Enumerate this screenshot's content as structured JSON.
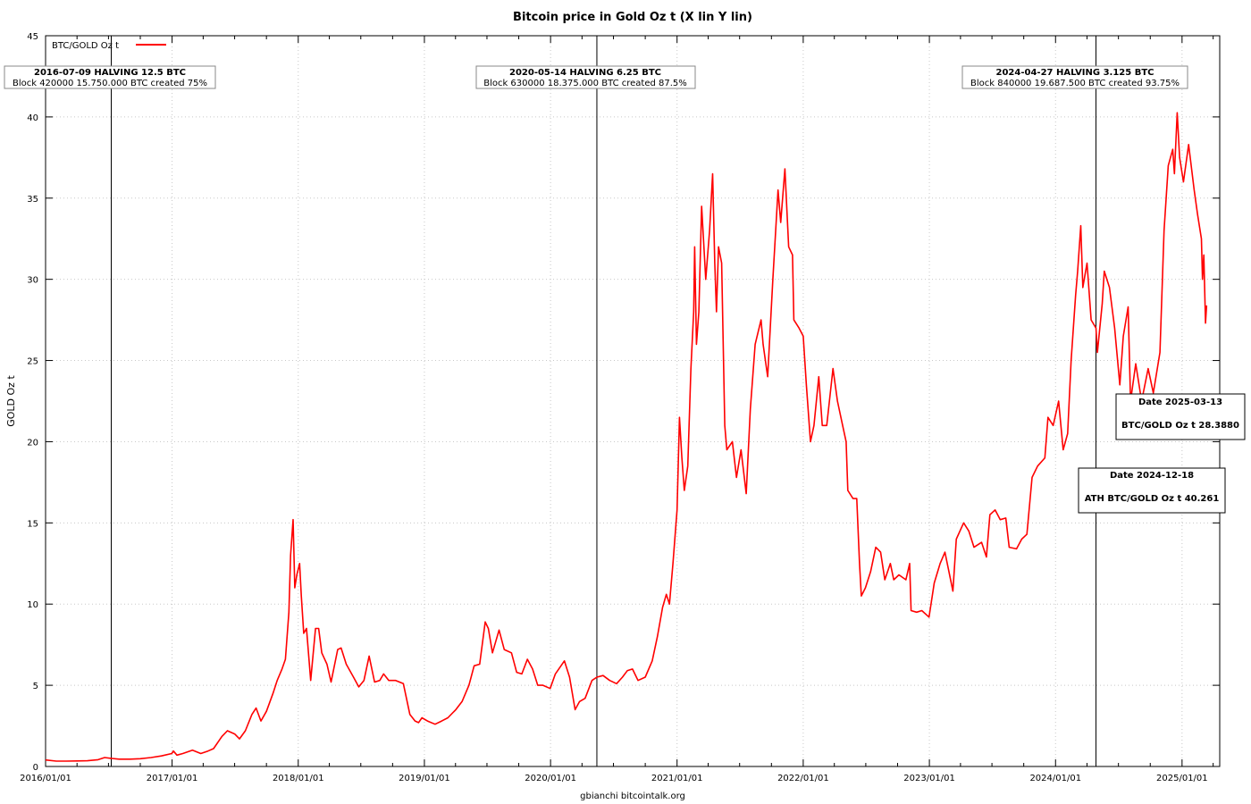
{
  "chart_data": {
    "type": "line",
    "title": "Bitcoin price in Gold Oz t (X lin Y lin)",
    "xlabel": "gbianchi bitcointalk.org",
    "ylabel": "GOLD Oz t",
    "xlim": [
      "2016-01-01",
      "2025-04-20"
    ],
    "ylim": [
      0,
      45
    ],
    "x_ticks": [
      "2016/01/01",
      "2017/01/01",
      "2018/01/01",
      "2019/01/01",
      "2020/01/01",
      "2021/01/01",
      "2022/01/01",
      "2023/01/01",
      "2024/01/01",
      "2025/01/01"
    ],
    "y_ticks": [
      0,
      5,
      10,
      15,
      20,
      25,
      30,
      35,
      40,
      45
    ],
    "grid": true,
    "legend": {
      "position": "top-left",
      "label": "BTC/GOLD Oz t",
      "color": "#ff0000"
    },
    "series": [
      {
        "name": "BTC/GOLD Oz t",
        "color": "#ff0000",
        "points": [
          [
            "2016-01-01",
            0.4
          ],
          [
            "2016-02-01",
            0.33
          ],
          [
            "2016-03-01",
            0.33
          ],
          [
            "2016-04-01",
            0.34
          ],
          [
            "2016-05-01",
            0.35
          ],
          [
            "2016-06-01",
            0.42
          ],
          [
            "2016-06-20",
            0.55
          ],
          [
            "2016-07-09",
            0.5
          ],
          [
            "2016-08-01",
            0.45
          ],
          [
            "2016-09-01",
            0.45
          ],
          [
            "2016-10-01",
            0.48
          ],
          [
            "2016-11-01",
            0.55
          ],
          [
            "2016-12-01",
            0.65
          ],
          [
            "2016-12-31",
            0.8
          ],
          [
            "2017-01-05",
            0.95
          ],
          [
            "2017-01-15",
            0.7
          ],
          [
            "2017-02-01",
            0.8
          ],
          [
            "2017-03-01",
            1.0
          ],
          [
            "2017-03-25",
            0.8
          ],
          [
            "2017-04-15",
            0.95
          ],
          [
            "2017-05-01",
            1.1
          ],
          [
            "2017-05-25",
            1.85
          ],
          [
            "2017-06-10",
            2.2
          ],
          [
            "2017-07-01",
            2.0
          ],
          [
            "2017-07-15",
            1.7
          ],
          [
            "2017-08-01",
            2.2
          ],
          [
            "2017-08-20",
            3.2
          ],
          [
            "2017-09-01",
            3.6
          ],
          [
            "2017-09-15",
            2.8
          ],
          [
            "2017-10-01",
            3.4
          ],
          [
            "2017-10-20",
            4.5
          ],
          [
            "2017-11-01",
            5.3
          ],
          [
            "2017-11-15",
            6.0
          ],
          [
            "2017-11-25",
            6.6
          ],
          [
            "2017-12-05",
            9.5
          ],
          [
            "2017-12-10",
            13.0
          ],
          [
            "2017-12-17",
            15.2
          ],
          [
            "2017-12-22",
            11.0
          ],
          [
            "2017-12-28",
            11.8
          ],
          [
            "2018-01-05",
            12.5
          ],
          [
            "2018-01-10",
            10.5
          ],
          [
            "2018-01-17",
            8.2
          ],
          [
            "2018-01-25",
            8.5
          ],
          [
            "2018-02-06",
            5.3
          ],
          [
            "2018-02-20",
            8.5
          ],
          [
            "2018-03-01",
            8.5
          ],
          [
            "2018-03-10",
            7.0
          ],
          [
            "2018-03-25",
            6.3
          ],
          [
            "2018-04-06",
            5.2
          ],
          [
            "2018-04-25",
            7.2
          ],
          [
            "2018-05-05",
            7.3
          ],
          [
            "2018-05-20",
            6.3
          ],
          [
            "2018-06-10",
            5.5
          ],
          [
            "2018-06-25",
            4.9
          ],
          [
            "2018-07-10",
            5.3
          ],
          [
            "2018-07-25",
            6.8
          ],
          [
            "2018-08-10",
            5.2
          ],
          [
            "2018-08-25",
            5.3
          ],
          [
            "2018-09-05",
            5.7
          ],
          [
            "2018-09-20",
            5.3
          ],
          [
            "2018-10-10",
            5.3
          ],
          [
            "2018-11-01",
            5.1
          ],
          [
            "2018-11-20",
            3.2
          ],
          [
            "2018-12-05",
            2.8
          ],
          [
            "2018-12-15",
            2.7
          ],
          [
            "2018-12-25",
            3.0
          ],
          [
            "2019-01-10",
            2.8
          ],
          [
            "2019-02-01",
            2.6
          ],
          [
            "2019-02-20",
            2.8
          ],
          [
            "2019-03-10",
            3.0
          ],
          [
            "2019-04-02",
            3.5
          ],
          [
            "2019-04-20",
            4.0
          ],
          [
            "2019-05-10",
            5.0
          ],
          [
            "2019-05-25",
            6.2
          ],
          [
            "2019-06-10",
            6.3
          ],
          [
            "2019-06-26",
            8.9
          ],
          [
            "2019-07-05",
            8.5
          ],
          [
            "2019-07-17",
            7.0
          ],
          [
            "2019-08-05",
            8.4
          ],
          [
            "2019-08-20",
            7.2
          ],
          [
            "2019-09-10",
            7.0
          ],
          [
            "2019-09-25",
            5.8
          ],
          [
            "2019-10-10",
            5.7
          ],
          [
            "2019-10-26",
            6.6
          ],
          [
            "2019-11-10",
            6.0
          ],
          [
            "2019-11-25",
            5.0
          ],
          [
            "2019-12-10",
            5.0
          ],
          [
            "2019-12-31",
            4.8
          ],
          [
            "2020-01-15",
            5.7
          ],
          [
            "2020-02-10",
            6.5
          ],
          [
            "2020-02-25",
            5.5
          ],
          [
            "2020-03-12",
            3.5
          ],
          [
            "2020-03-25",
            4.0
          ],
          [
            "2020-04-10",
            4.2
          ],
          [
            "2020-04-30",
            5.3
          ],
          [
            "2020-05-14",
            5.5
          ],
          [
            "2020-06-01",
            5.6
          ],
          [
            "2020-06-20",
            5.3
          ],
          [
            "2020-07-10",
            5.1
          ],
          [
            "2020-07-27",
            5.5
          ],
          [
            "2020-08-10",
            5.9
          ],
          [
            "2020-08-25",
            6.0
          ],
          [
            "2020-09-10",
            5.3
          ],
          [
            "2020-10-01",
            5.5
          ],
          [
            "2020-10-21",
            6.5
          ],
          [
            "2020-11-05",
            8.0
          ],
          [
            "2020-11-20",
            9.8
          ],
          [
            "2020-12-01",
            10.6
          ],
          [
            "2020-12-10",
            10.0
          ],
          [
            "2020-12-20",
            12.5
          ],
          [
            "2021-01-01",
            15.8
          ],
          [
            "2021-01-08",
            21.5
          ],
          [
            "2021-01-15",
            19.0
          ],
          [
            "2021-01-22",
            17.0
          ],
          [
            "2021-02-01",
            18.5
          ],
          [
            "2021-02-10",
            24.5
          ],
          [
            "2021-02-18",
            28.0
          ],
          [
            "2021-02-21",
            32.0
          ],
          [
            "2021-02-26",
            26.0
          ],
          [
            "2021-03-05",
            28.0
          ],
          [
            "2021-03-13",
            34.5
          ],
          [
            "2021-03-25",
            30.0
          ],
          [
            "2021-04-05",
            33.0
          ],
          [
            "2021-04-14",
            36.5
          ],
          [
            "2021-04-20",
            31.0
          ],
          [
            "2021-04-25",
            28.0
          ],
          [
            "2021-05-01",
            32.0
          ],
          [
            "2021-05-10",
            31.0
          ],
          [
            "2021-05-19",
            21.0
          ],
          [
            "2021-05-25",
            19.5
          ],
          [
            "2021-06-10",
            20.0
          ],
          [
            "2021-06-22",
            17.8
          ],
          [
            "2021-07-05",
            19.5
          ],
          [
            "2021-07-20",
            16.8
          ],
          [
            "2021-08-01",
            22.0
          ],
          [
            "2021-08-15",
            26.0
          ],
          [
            "2021-09-01",
            27.5
          ],
          [
            "2021-09-07",
            26.0
          ],
          [
            "2021-09-20",
            24.0
          ],
          [
            "2021-10-05",
            30.0
          ],
          [
            "2021-10-20",
            35.5
          ],
          [
            "2021-10-28",
            33.5
          ],
          [
            "2021-11-09",
            36.8
          ],
          [
            "2021-11-20",
            32.0
          ],
          [
            "2021-12-01",
            31.5
          ],
          [
            "2021-12-05",
            27.5
          ],
          [
            "2021-12-20",
            27.0
          ],
          [
            "2022-01-01",
            26.5
          ],
          [
            "2022-01-10",
            23.5
          ],
          [
            "2022-01-22",
            20.0
          ],
          [
            "2022-02-01",
            21.0
          ],
          [
            "2022-02-15",
            24.0
          ],
          [
            "2022-02-25",
            21.0
          ],
          [
            "2022-03-10",
            21.0
          ],
          [
            "2022-03-28",
            24.5
          ],
          [
            "2022-04-10",
            22.5
          ],
          [
            "2022-04-25",
            21.0
          ],
          [
            "2022-05-05",
            20.0
          ],
          [
            "2022-05-10",
            17.0
          ],
          [
            "2022-05-25",
            16.5
          ],
          [
            "2022-06-05",
            16.5
          ],
          [
            "2022-06-13",
            12.5
          ],
          [
            "2022-06-18",
            10.5
          ],
          [
            "2022-06-30",
            11.0
          ],
          [
            "2022-07-15",
            12.0
          ],
          [
            "2022-07-30",
            13.5
          ],
          [
            "2022-08-13",
            13.2
          ],
          [
            "2022-08-25",
            11.5
          ],
          [
            "2022-09-10",
            12.5
          ],
          [
            "2022-09-20",
            11.5
          ],
          [
            "2022-10-05",
            11.8
          ],
          [
            "2022-10-25",
            11.5
          ],
          [
            "2022-11-05",
            12.5
          ],
          [
            "2022-11-09",
            9.6
          ],
          [
            "2022-11-25",
            9.5
          ],
          [
            "2022-12-10",
            9.6
          ],
          [
            "2022-12-31",
            9.2
          ],
          [
            "2023-01-15",
            11.3
          ],
          [
            "2023-02-01",
            12.5
          ],
          [
            "2023-02-15",
            13.2
          ],
          [
            "2023-03-10",
            10.8
          ],
          [
            "2023-03-20",
            14.0
          ],
          [
            "2023-04-10",
            15.0
          ],
          [
            "2023-04-25",
            14.5
          ],
          [
            "2023-05-10",
            13.5
          ],
          [
            "2023-06-01",
            13.8
          ],
          [
            "2023-06-15",
            12.9
          ],
          [
            "2023-06-25",
            15.5
          ],
          [
            "2023-07-10",
            15.8
          ],
          [
            "2023-07-25",
            15.2
          ],
          [
            "2023-08-10",
            15.3
          ],
          [
            "2023-08-20",
            13.5
          ],
          [
            "2023-09-10",
            13.4
          ],
          [
            "2023-09-25",
            14.0
          ],
          [
            "2023-10-10",
            14.3
          ],
          [
            "2023-10-25",
            17.8
          ],
          [
            "2023-11-10",
            18.5
          ],
          [
            "2023-12-01",
            19.0
          ],
          [
            "2023-12-10",
            21.5
          ],
          [
            "2023-12-25",
            21.0
          ],
          [
            "2024-01-10",
            22.5
          ],
          [
            "2024-01-23",
            19.5
          ],
          [
            "2024-02-05",
            20.5
          ],
          [
            "2024-02-15",
            25.0
          ],
          [
            "2024-02-28",
            29.0
          ],
          [
            "2024-03-05",
            30.5
          ],
          [
            "2024-03-14",
            33.3
          ],
          [
            "2024-03-20",
            29.5
          ],
          [
            "2024-04-01",
            31.0
          ],
          [
            "2024-04-13",
            27.5
          ],
          [
            "2024-04-27",
            27.0
          ],
          [
            "2024-05-01",
            25.5
          ],
          [
            "2024-05-15",
            28.5
          ],
          [
            "2024-05-21",
            30.5
          ],
          [
            "2024-06-05",
            29.5
          ],
          [
            "2024-06-20",
            27.0
          ],
          [
            "2024-07-05",
            23.5
          ],
          [
            "2024-07-15",
            26.5
          ],
          [
            "2024-07-29",
            28.3
          ],
          [
            "2024-08-05",
            22.5
          ],
          [
            "2024-08-20",
            24.8
          ],
          [
            "2024-09-06",
            22.5
          ],
          [
            "2024-09-25",
            24.5
          ],
          [
            "2024-10-10",
            23.0
          ],
          [
            "2024-10-29",
            25.5
          ],
          [
            "2024-11-10",
            33.0
          ],
          [
            "2024-11-22",
            37.0
          ],
          [
            "2024-12-05",
            38.0
          ],
          [
            "2024-12-10",
            36.5
          ],
          [
            "2024-12-18",
            40.26
          ],
          [
            "2024-12-25",
            37.5
          ],
          [
            "2025-01-05",
            36.0
          ],
          [
            "2025-01-20",
            38.3
          ],
          [
            "2025-02-05",
            35.5
          ],
          [
            "2025-02-15",
            34.0
          ],
          [
            "2025-02-26",
            32.5
          ],
          [
            "2025-03-01",
            30.0
          ],
          [
            "2025-03-05",
            31.5
          ],
          [
            "2025-03-10",
            27.3
          ],
          [
            "2025-03-13",
            28.39
          ]
        ]
      }
    ],
    "halvings": [
      {
        "date": "2016-07-09",
        "title": "2016-07-09 HALVING 12.5 BTC",
        "subtitle": "Block 420000 15.750.000 BTC created 75%"
      },
      {
        "date": "2020-05-14",
        "title": "2020-05-14 HALVING 6.25 BTC",
        "subtitle": "Block 630000 18.375.000 BTC created 87.5%"
      },
      {
        "date": "2024-04-27",
        "title": "2024-04-27 HALVING 3.125 BTC",
        "subtitle": "Block 840000 19.687.500 BTC created 93.75%"
      }
    ],
    "info_boxes": [
      {
        "line1": "Date 2025-03-13",
        "line2": "BTC/GOLD Oz t 28.3880"
      },
      {
        "line1": "Date 2024-12-18",
        "line2": "ATH BTC/GOLD Oz t 40.261"
      }
    ]
  }
}
